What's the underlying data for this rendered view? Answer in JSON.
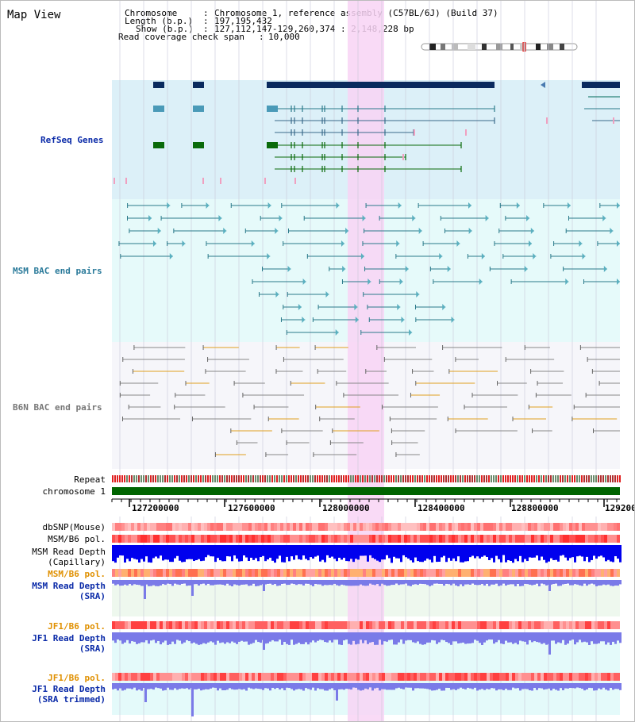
{
  "page_title": "Map View",
  "header": {
    "chromosome_label": "Chromosome",
    "chromosome_value": "Chromosome 1, reference assembly (C57BL/6J) (Build 37)",
    "length_label": "Length (b.p.)",
    "length_value": "197,195,432",
    "show_label": "Show (b.p.)",
    "show_value": "127,112,147-129,260,374 : 2,148,228 bp",
    "coverage_label": "Read coverage check span",
    "coverage_value": "10,000"
  },
  "tracks": {
    "refseq": "RefSeq Genes",
    "msm_bac": "MSM BAC end pairs",
    "b6n_bac": "B6N BAC end pairs",
    "repeat": "Repeat",
    "chromosome": "chromosome 1",
    "dbsnp": "dbSNP(Mouse)",
    "msm_b6_pol_1": "MSM/B6 pol.",
    "msm_read_depth_cap_1": "MSM Read Depth",
    "msm_read_depth_cap_2": "(Capillary)",
    "msm_b6_pol_2": "MSM/B6 pol.",
    "msm_read_depth_sra_1": "MSM Read Depth",
    "msm_read_depth_sra_2": "(SRA)",
    "jf1_b6_pol_1": "JF1/B6 pol.",
    "jf1_read_depth_sra_1": "JF1 Read Depth",
    "jf1_read_depth_sra_2": "(SRA)",
    "jf1_b6_pol_2": "JF1/B6 pol.",
    "jf1_read_depth_trim_1": "JF1 Read Depth",
    "jf1_read_depth_trim_2": "(SRA trimmed)"
  },
  "axis_ticks": [
    "127200000",
    "127600000",
    "128000000",
    "128400000",
    "128800000",
    "1292000"
  ],
  "colors": {
    "refseq_bg": "#dcf0f8",
    "msm_bg": "#e6fafa",
    "b6n_bg": "#f6f6fa",
    "highlight": "#f8d4f4",
    "gene_dark": "#0a2a5e",
    "gene_teal": "#4a9ab8",
    "gene_green": "#0a6a0a",
    "msm_line": "#2a7a8a",
    "b6n_line": "#888888",
    "chromosome_bar": "#006400",
    "depth_blue": "#0000ee",
    "depth_lilac": "#7a7ae8",
    "label_blue": "#0a2aa8",
    "label_orange": "#e09000",
    "label_teal": "#2a7a9a"
  }
}
